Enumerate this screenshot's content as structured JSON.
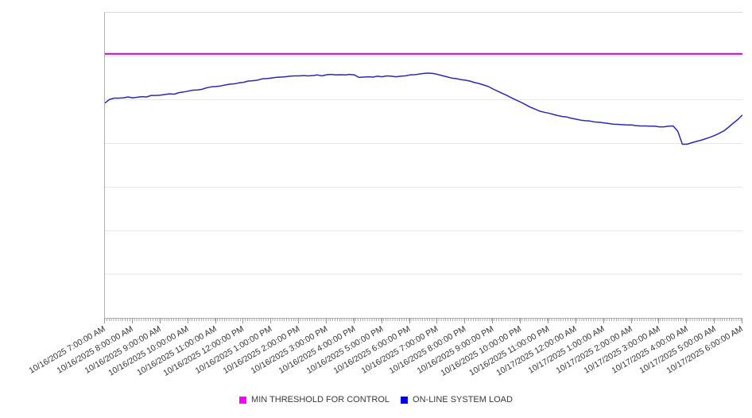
{
  "chart_data": {
    "type": "line",
    "title": "",
    "xlabel": "",
    "ylabel": "",
    "y_axis": {
      "tick_labels_visible": false,
      "range_percent_of_plot": [
        0,
        100
      ],
      "gridline_values": [
        14.286,
        28.571,
        42.857,
        57.143,
        71.429,
        85.714
      ]
    },
    "x_axis": {
      "minor_tick_interval_minutes": 5,
      "labels": [
        "10/16/2025 7:00:00 AM",
        "10/16/2025 8:00:00 AM",
        "10/16/2025 9:00:00 AM",
        "10/16/2025 10:00:00 AM",
        "10/16/2025 11:00:00 AM",
        "10/16/2025 12:00:00 PM",
        "10/16/2025 1:00:00 PM",
        "10/16/2025 2:00:00 PM",
        "10/16/2025 3:00:00 PM",
        "10/16/2025 4:00:00 PM",
        "10/16/2025 5:00:00 PM",
        "10/16/2025 6:00:00 PM",
        "10/16/2025 7:00:00 PM",
        "10/16/2025 8:00:00 PM",
        "10/16/2025 9:00:00 PM",
        "10/16/2025 10:00:00 PM",
        "10/16/2025 11:00:00 PM",
        "10/17/2025 12:00:00 AM",
        "10/17/2025 1:00:00 AM",
        "10/17/2025 2:00:00 AM",
        "10/17/2025 3:00:00 AM",
        "10/17/2025 4:00:00 AM",
        "10/17/2025 5:00:00 AM",
        "10/17/2025 6:00:00 AM"
      ]
    },
    "series": [
      {
        "name": "MIN THRESHOLD FOR CONTROL",
        "type": "constant-threshold-line",
        "color": "#cc00cc",
        "value": 86.5
      },
      {
        "name": "ON-LINE SYSTEM LOAD",
        "type": "line",
        "color": "#2a2ab8",
        "start": "10/16/2025 7:00:00 AM",
        "end": "10/17/2025 6:00:00 AM",
        "interval_minutes": 10,
        "values": [
          70.4,
          71.6,
          72.0,
          72.0,
          72.1,
          72.4,
          72.1,
          72.3,
          72.5,
          72.4,
          72.9,
          72.9,
          73.0,
          73.2,
          73.4,
          73.3,
          73.8,
          74.0,
          74.3,
          74.6,
          74.7,
          74.9,
          75.4,
          75.7,
          75.8,
          76.0,
          76.3,
          76.6,
          76.7,
          77.0,
          77.2,
          77.6,
          77.7,
          77.9,
          78.3,
          78.4,
          78.6,
          78.8,
          78.9,
          79.0,
          79.2,
          79.3,
          79.3,
          79.4,
          79.3,
          79.4,
          79.6,
          79.3,
          79.7,
          79.8,
          79.6,
          79.7,
          79.6,
          79.8,
          79.6,
          78.8,
          78.9,
          79.0,
          78.9,
          79.2,
          79.0,
          79.3,
          79.2,
          79.0,
          79.2,
          79.3,
          79.6,
          79.7,
          79.9,
          80.1,
          80.2,
          80.1,
          79.8,
          79.4,
          79.0,
          78.6,
          78.4,
          78.1,
          77.9,
          77.6,
          77.1,
          76.8,
          76.3,
          75.8,
          75.0,
          74.3,
          73.6,
          72.9,
          72.1,
          71.4,
          70.7,
          69.9,
          69.1,
          68.5,
          67.8,
          67.4,
          67.1,
          66.7,
          66.3,
          66.0,
          65.8,
          65.4,
          65.1,
          64.8,
          64.6,
          64.5,
          64.2,
          64.1,
          63.9,
          63.7,
          63.5,
          63.4,
          63.3,
          63.2,
          63.2,
          63.0,
          62.9,
          62.9,
          62.8,
          62.8,
          62.6,
          62.6,
          62.8,
          62.9,
          61.2,
          56.9,
          56.9,
          57.4,
          57.8,
          58.2,
          58.7,
          59.2,
          59.8,
          60.5,
          61.3,
          62.5,
          63.8,
          65.0,
          66.5
        ]
      }
    ],
    "legend": {
      "position": "bottom-center",
      "items": [
        {
          "label": "MIN THRESHOLD FOR CONTROL",
          "color": "#ff00ff"
        },
        {
          "label": "ON-LINE SYSTEM LOAD",
          "color": "#0000ee"
        }
      ]
    },
    "layout_hints": {
      "grid": "horizontal-only",
      "background": "#ffffff",
      "gridline_color": "#e6e6e6",
      "x_labels_rotation_deg": -30
    }
  }
}
